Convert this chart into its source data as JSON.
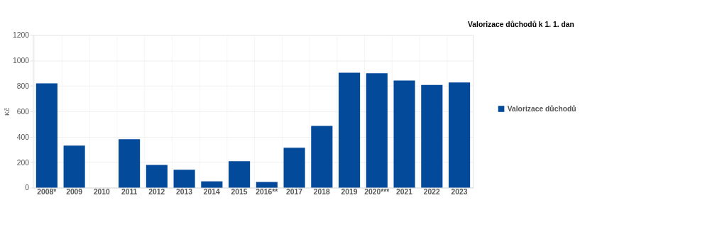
{
  "chart_data": {
    "type": "bar",
    "title": "Valorizace důchodů k 1. 1. dan",
    "ylabel": "Kč",
    "categories": [
      "2008*",
      "2009",
      "2010",
      "2011",
      "2012",
      "2013",
      "2014",
      "2015",
      "2016**",
      "2017",
      "2018",
      "2019",
      "2020***",
      "2021",
      "2022",
      "2023"
    ],
    "series": [
      {
        "name": "Valorizace důchodů",
        "color": "#034a9a",
        "values": [
          820,
          331,
          0,
          381,
          179,
          141,
          50,
          208,
          45,
          314,
          486,
          904,
          899,
          842,
          808,
          827
        ]
      }
    ],
    "ylim": [
      0,
      1200
    ],
    "yticks": [
      0,
      200,
      400,
      600,
      800,
      1000,
      1200
    ],
    "grid": true,
    "legend": "right"
  }
}
